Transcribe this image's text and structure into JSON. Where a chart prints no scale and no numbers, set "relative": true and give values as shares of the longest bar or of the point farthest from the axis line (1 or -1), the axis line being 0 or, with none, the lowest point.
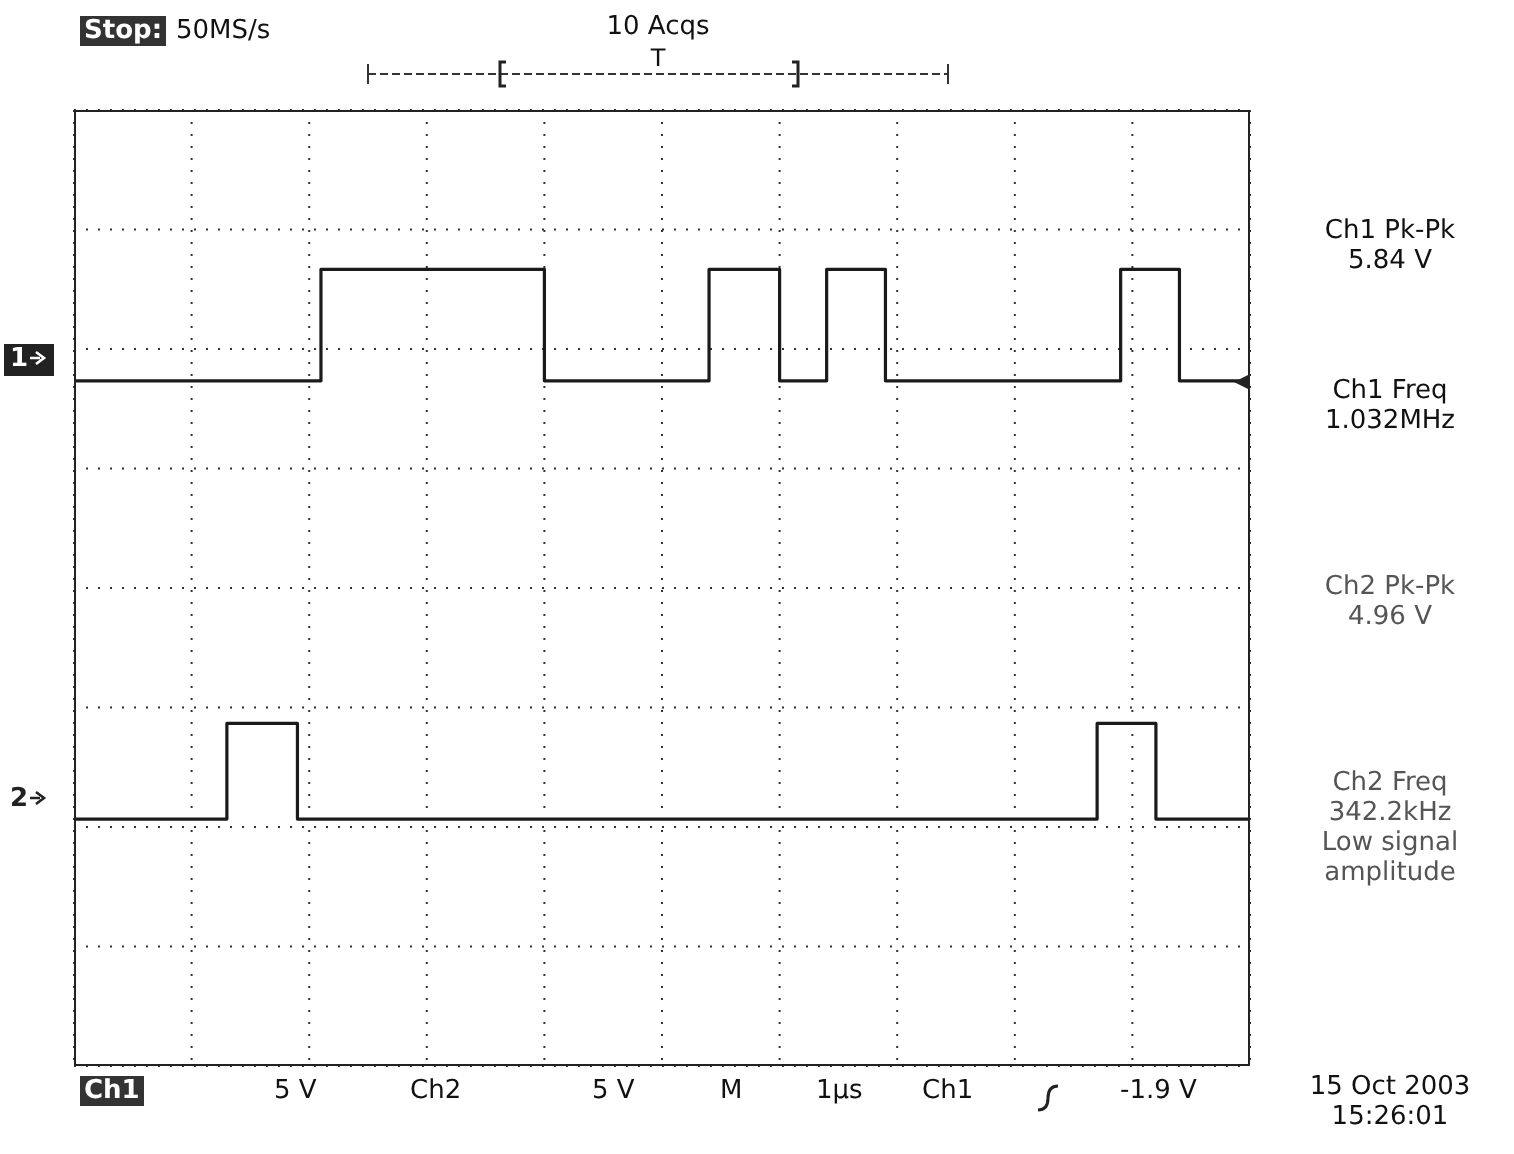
{
  "chart_data": {
    "type": "step",
    "relative": true,
    "grid": true,
    "categories": [
      null,
      null,
      null,
      null,
      null,
      null,
      null,
      null,
      null,
      null,
      null,
      null,
      null,
      null,
      null,
      null,
      null,
      null,
      null,
      null,
      null,
      null,
      null,
      null,
      null,
      null,
      null,
      null,
      null,
      null,
      null,
      null,
      null,
      null,
      null,
      null,
      null,
      null,
      null,
      null,
      null,
      null,
      null,
      null,
      null,
      null,
      null,
      null,
      null,
      null,
      null,
      null,
      null,
      null,
      null,
      null,
      null,
      null,
      null,
      null,
      null,
      null,
      null,
      null,
      null,
      null,
      null,
      null,
      null,
      null,
      null,
      null,
      null,
      null,
      null,
      null,
      null,
      null,
      null,
      null,
      null,
      null,
      null,
      null,
      null,
      null,
      null,
      null,
      null,
      null,
      null,
      null,
      null,
      null,
      null,
      null,
      null,
      null,
      null,
      null,
      null
    ],
    "series": [
      {
        "name": "1",
        "color": "#1a1a1a",
        "values": [
          0.86,
          0.86,
          0.86,
          0.86,
          0.86,
          0.86,
          0.86,
          0.86,
          0.86,
          0.86,
          0.86,
          0.86,
          0.86,
          0.86,
          0.86,
          0.86,
          0.86,
          0.86,
          0.86,
          0.86,
          0.86,
          1,
          1,
          1,
          1,
          1,
          1,
          1,
          1,
          1,
          1,
          1,
          1,
          1,
          1,
          1,
          1,
          1,
          1,
          1,
          0.86,
          0.86,
          0.86,
          0.86,
          0.86,
          0.86,
          0.86,
          0.86,
          0.86,
          0.86,
          0.86,
          0.86,
          0.86,
          0.86,
          1,
          1,
          1,
          1,
          1,
          1,
          0.86,
          0.86,
          0.86,
          0.86,
          1,
          1,
          1,
          1,
          1,
          0.86,
          0.86,
          0.86,
          0.86,
          0.86,
          0.86,
          0.86,
          0.86,
          0.86,
          0.86,
          0.86,
          0.86,
          0.86,
          0.86,
          0.86,
          0.86,
          0.86,
          0.86,
          0.86,
          0.86,
          1,
          1,
          1,
          1,
          1,
          0.86,
          0.86,
          0.86,
          0.86,
          0.86,
          0.86,
          0.86
        ]
      },
      {
        "name": "2",
        "color": "#1a1a1a",
        "values": [
          0.31,
          0.31,
          0.31,
          0.31,
          0.31,
          0.31,
          0.31,
          0.31,
          0.31,
          0.31,
          0.31,
          0.31,
          0.31,
          0.43,
          0.43,
          0.43,
          0.43,
          0.43,
          0.43,
          0.31,
          0.31,
          0.31,
          0.31,
          0.31,
          0.31,
          0.31,
          0.31,
          0.31,
          0.31,
          0.31,
          0.31,
          0.31,
          0.31,
          0.31,
          0.31,
          0.31,
          0.31,
          0.31,
          0.31,
          0.31,
          0.31,
          0.31,
          0.31,
          0.31,
          0.31,
          0.31,
          0.31,
          0.31,
          0.31,
          0.31,
          0.31,
          0.31,
          0.31,
          0.31,
          0.31,
          0.31,
          0.31,
          0.31,
          0.31,
          0.31,
          0.31,
          0.31,
          0.31,
          0.31,
          0.31,
          0.31,
          0.31,
          0.31,
          0.31,
          0.31,
          0.31,
          0.31,
          0.31,
          0.31,
          0.31,
          0.31,
          0.31,
          0.31,
          0.31,
          0.31,
          0.31,
          0.31,
          0.31,
          0.31,
          0.31,
          0.31,
          0.31,
          0.43,
          0.43,
          0.43,
          0.43,
          0.43,
          0.31,
          0.31,
          0.31,
          0.31,
          0.31,
          0.31,
          0.31,
          0.31,
          0.31
        ]
      }
    ],
    "annotations": [
      "Stop:",
      "50MS/s",
      "10 Acqs",
      "T",
      "Ch1 Pk-Pk\n5.84 V",
      "Ch1 Freq\n1.032MHz",
      "Ch2 Pk-Pk\n4.96 V",
      "Ch2 Freq\n342.2kHz\nLow signal\namplitude",
      "Ch1",
      "5 V",
      "Ch2",
      "5 V",
      "M",
      "1µs",
      "Ch1",
      "-1.9 V",
      "15 Oct 2003\n15:26:01"
    ]
  }
}
